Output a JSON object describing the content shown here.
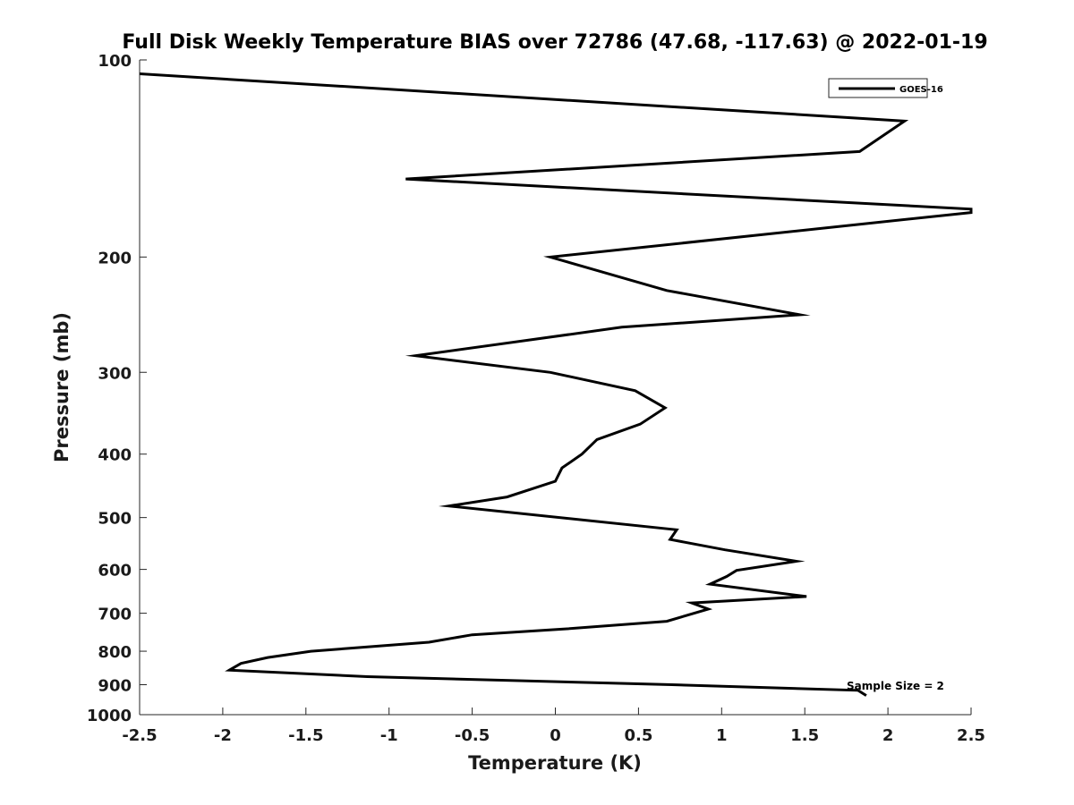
{
  "chart_data": {
    "type": "line",
    "title": "Full Disk Weekly Temperature BIAS over 72786 (47.68, -117.63) @ 2022-01-19",
    "xlabel": "Temperature (K)",
    "ylabel": "Pressure (mb)",
    "xlim": [
      -2.5,
      2.5
    ],
    "ylim": [
      1000,
      100
    ],
    "y_scale": "log",
    "x_ticks": [
      -2.5,
      -2,
      -1.5,
      -1,
      -0.5,
      0,
      0.5,
      1,
      1.5,
      2,
      2.5
    ],
    "x_tick_labels": [
      "-2.5",
      "-2",
      "-1.5",
      "-1",
      "-0.5",
      "0",
      "0.5",
      "1",
      "1.5",
      "2",
      "2.5"
    ],
    "y_ticks": [
      100,
      200,
      300,
      400,
      500,
      600,
      700,
      800,
      900,
      1000
    ],
    "y_tick_labels": [
      "100",
      "200",
      "300",
      "400",
      "500",
      "600",
      "700",
      "800",
      "900",
      "1000"
    ],
    "grid": false,
    "legend_position": "top-right",
    "annotation": "Sample Size = 2",
    "series": [
      {
        "name": "GOES-16",
        "color": "#000000",
        "x": [
          -2.5,
          2.1,
          1.83,
          -0.9,
          2.5,
          2.5,
          -0.03,
          0.67,
          1.47,
          0.4,
          -0.84,
          -0.03,
          0.48,
          0.66,
          0.51,
          0.25,
          0.16,
          0.04,
          0.0,
          -0.29,
          -0.64,
          0.73,
          0.69,
          1.02,
          1.45,
          1.09,
          1.03,
          0.93,
          1.51,
          0.82,
          0.92,
          0.67,
          0.05,
          -0.5,
          -0.76,
          -1.47,
          -1.73,
          -1.89,
          -1.96,
          -1.13,
          0.7,
          1.82,
          1.87
        ],
        "y": [
          105,
          124,
          138,
          152,
          169,
          171,
          200,
          225,
          245,
          256,
          283,
          300,
          320,
          340,
          360,
          380,
          400,
          420,
          440,
          465,
          480,
          522,
          540,
          560,
          583,
          602,
          615,
          632,
          660,
          675,
          690,
          720,
          740,
          755,
          775,
          800,
          818,
          835,
          855,
          875,
          900,
          918,
          935
        ]
      }
    ]
  }
}
